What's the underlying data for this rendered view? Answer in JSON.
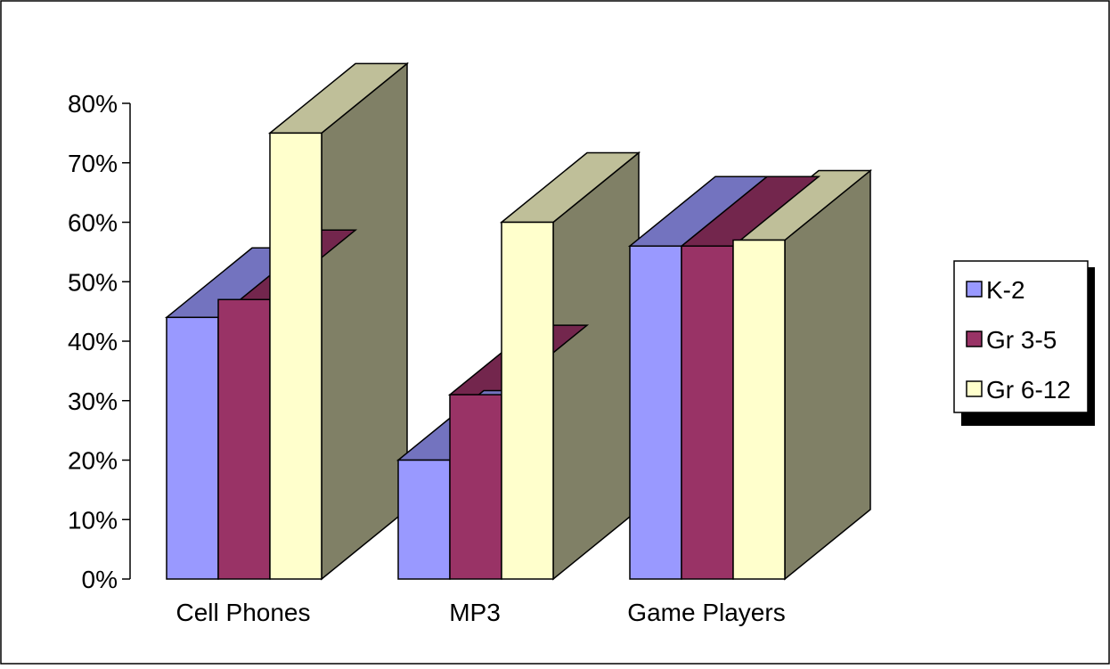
{
  "chart_data": {
    "type": "bar",
    "categories": [
      "Cell Phones",
      "MP3",
      "Game Players"
    ],
    "series": [
      {
        "name": "K-2",
        "values": [
          0.44,
          0.2,
          0.56
        ]
      },
      {
        "name": "Gr 3-5",
        "values": [
          0.47,
          0.31,
          0.56
        ]
      },
      {
        "name": "Gr 6-12",
        "values": [
          0.75,
          0.6,
          0.57
        ]
      }
    ],
    "title": "",
    "xlabel": "",
    "ylabel": "",
    "ylim": [
      0,
      0.8
    ],
    "yticks": [
      "0%",
      "10%",
      "20%",
      "30%",
      "40%",
      "50%",
      "60%",
      "70%",
      "80%"
    ],
    "grid": false,
    "legend_position": "right",
    "three_d": true,
    "colors": {
      "K-2": "#9999ff",
      "Gr 3-5": "#993366",
      "Gr 6-12": "#ffffcc",
      "K-2_top": "#7373bf",
      "Gr 3-5_top": "#73264d",
      "Gr 6-12_top": "#bfbf99",
      "side": "#808066"
    }
  }
}
